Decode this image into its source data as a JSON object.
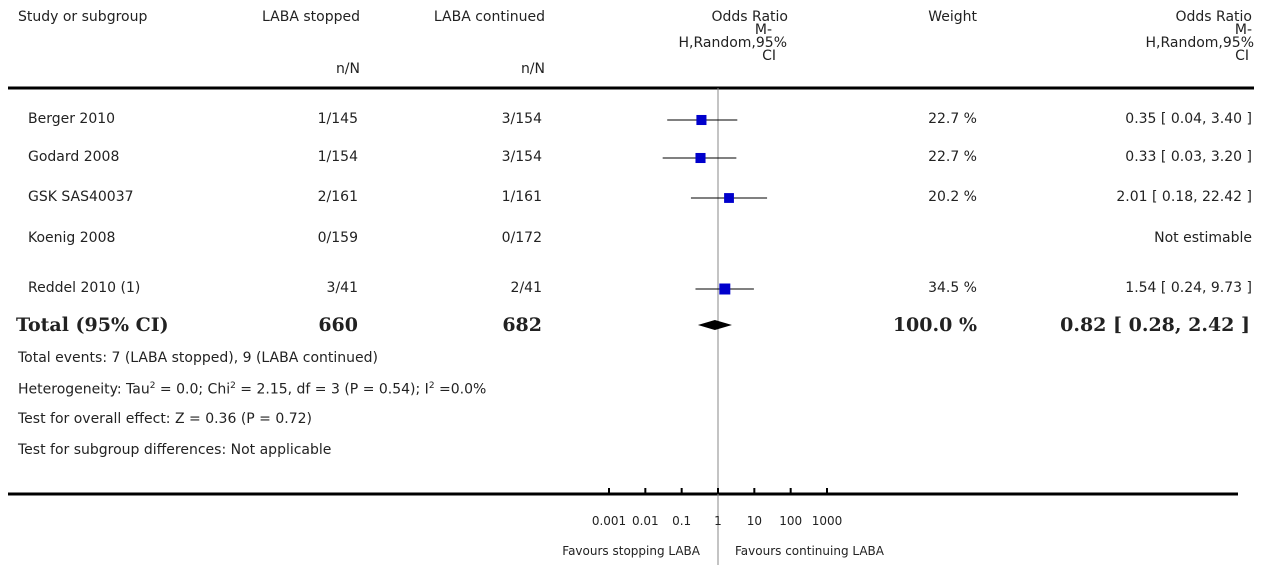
{
  "headers": {
    "study": "Study or subgroup",
    "exp": "LABA stopped",
    "ctrl": "LABA continued",
    "or_plot_l1": "Odds Ratio",
    "or_plot_l2": "M-",
    "or_plot_l3": "H,Random,95%",
    "or_plot_l4": "CI",
    "weight": "Weight",
    "or_text_l1": "Odds Ratio",
    "or_text_l2": "M-",
    "or_text_l3": "H,Random,95%",
    "or_text_l4": "CI",
    "exp_sub": "n/N",
    "ctrl_sub": "n/N"
  },
  "studies": [
    {
      "name": "Berger 2010",
      "exp": "1/145",
      "ctrl": "3/154",
      "weight": "22.7 %",
      "or_text": "0.35 [ 0.04, 3.40 ]"
    },
    {
      "name": "Godard 2008",
      "exp": "1/154",
      "ctrl": "3/154",
      "weight": "22.7 %",
      "or_text": "0.33 [ 0.03, 3.20 ]"
    },
    {
      "name": "GSK SAS40037",
      "exp": "2/161",
      "ctrl": "1/161",
      "weight": "20.2 %",
      "or_text": "2.01 [ 0.18, 22.42 ]"
    },
    {
      "name": "Koenig 2008",
      "exp": "0/159",
      "ctrl": "0/172",
      "weight": "",
      "or_text": "Not estimable"
    },
    {
      "name": "Reddel 2010 (1)",
      "exp": "3/41",
      "ctrl": "2/41",
      "weight": "34.5 %",
      "or_text": "1.54 [ 0.24, 9.73 ]"
    }
  ],
  "total": {
    "name": "Total (95% CI)",
    "exp": "660",
    "ctrl": "682",
    "weight": "100.0 %",
    "or_text": "0.82 [ 0.28, 2.42 ]"
  },
  "footnotes": {
    "events": "Total events: 7 (LABA stopped), 9 (LABA continued)",
    "het_prefix": "Heterogeneity: Tau",
    "het_sup1": "2",
    "het_mid1": " = 0.0; Chi",
    "het_sup2": "2",
    "het_mid2": " = 2.15, df = 3 (P = 0.54); I",
    "het_sup3": "2",
    "het_end": " =0.0%",
    "overall": "Test for overall effect: Z = 0.36 (P = 0.72)",
    "subgroup": "Test for subgroup differences: Not applicable"
  },
  "axis": {
    "favours_left": "Favours stopping LABA",
    "favours_right": "Favours continuing LABA"
  },
  "chart_data": {
    "type": "scatter",
    "scale": "log",
    "xlim": [
      0.001,
      1000
    ],
    "ticks": [
      {
        "value": 0.001,
        "label": "0.001"
      },
      {
        "value": 0.01,
        "label": "0.01"
      },
      {
        "value": 0.1,
        "label": "0.1"
      },
      {
        "value": 1,
        "label": "1"
      },
      {
        "value": 10,
        "label": "10"
      },
      {
        "value": 100,
        "label": "100"
      },
      {
        "value": 1000,
        "label": "1000"
      }
    ],
    "studies": [
      {
        "name": "Berger 2010",
        "or": 0.35,
        "lower": 0.04,
        "upper": 3.4,
        "weight": 22.7
      },
      {
        "name": "Godard 2008",
        "or": 0.33,
        "lower": 0.03,
        "upper": 3.2,
        "weight": 22.7
      },
      {
        "name": "GSK SAS40037",
        "or": 2.01,
        "lower": 0.18,
        "upper": 22.42,
        "weight": 20.2
      },
      {
        "name": "Koenig 2008",
        "or": null,
        "lower": null,
        "upper": null,
        "weight": null
      },
      {
        "name": "Reddel 2010 (1)",
        "or": 1.54,
        "lower": 0.24,
        "upper": 9.73,
        "weight": 34.5
      }
    ],
    "total": {
      "or": 0.82,
      "lower": 0.28,
      "upper": 2.42
    },
    "marker_color": "#0000cc",
    "line_color": "#000000"
  }
}
